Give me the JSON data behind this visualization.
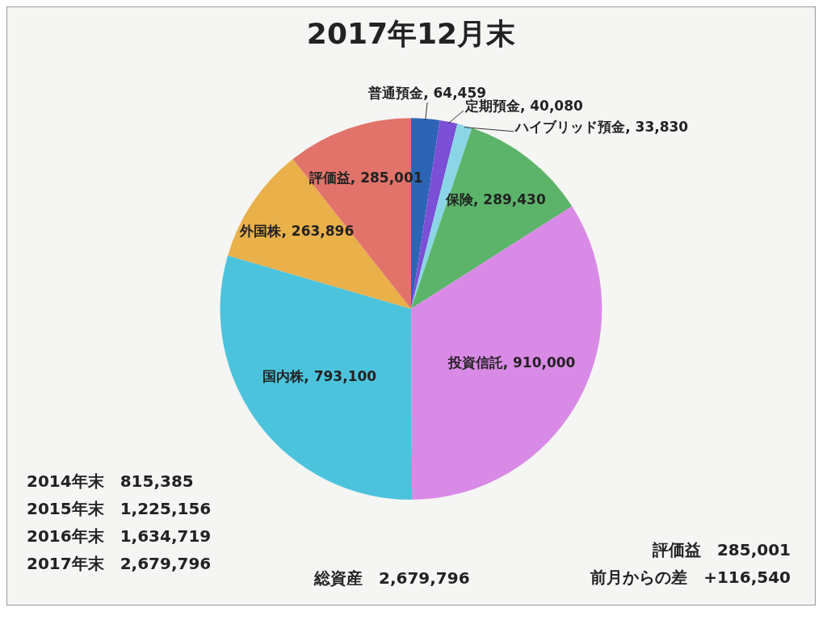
{
  "chart_data": {
    "type": "pie",
    "title": "2017年12月末",
    "categories": [
      "普通預金",
      "定期預金",
      "ハイブリッド預金",
      "保険",
      "投資信託",
      "国内株",
      "外国株",
      "評価益"
    ],
    "value_labels": [
      "64,459",
      "40,080",
      "33,830",
      "289,430",
      "910,000",
      "793,100",
      "263,896",
      "285,001"
    ],
    "values": [
      64459,
      40080,
      33830,
      289430,
      910000,
      793100,
      263896,
      285001
    ],
    "colors": [
      "#2e64b5",
      "#7b4fd6",
      "#8ad6e6",
      "#5cb46a",
      "#d98ae6",
      "#4cc3dd",
      "#eab04a",
      "#e2736b"
    ],
    "legend": false,
    "annotations": [
      "2014年末　815,385",
      "2015年末　1,225,156",
      "2016年末　1,634,719",
      "2017年末　2,679,796",
      "総資産　2,679,796",
      "評価益　285,001",
      "前月からの差　+116,540"
    ]
  }
}
